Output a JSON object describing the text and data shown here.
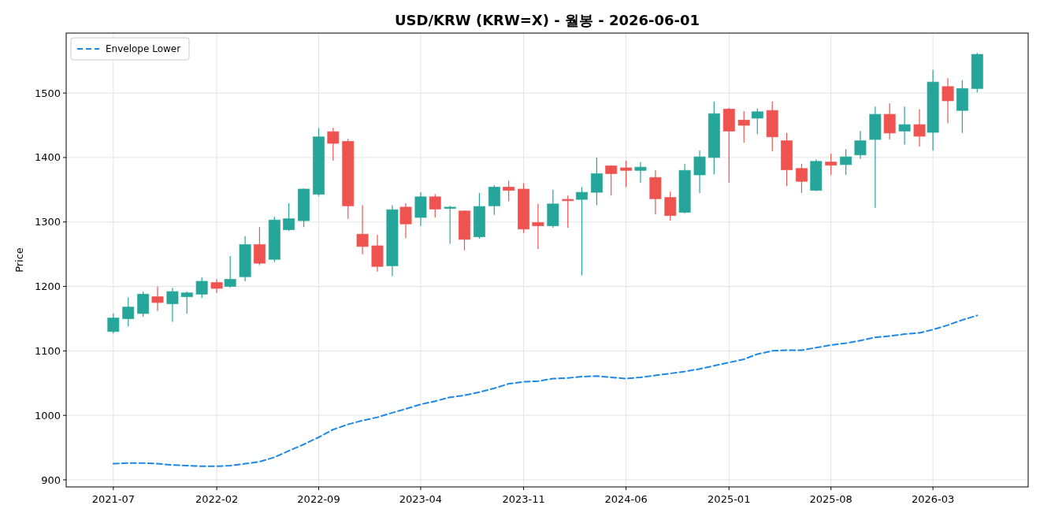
{
  "chart_data": {
    "type": "candlestick",
    "title": "USD/KRW (KRW=X) - 월봉 - 2026-06-01",
    "ylabel": "Price",
    "x": [
      "2021-07",
      "2021-08",
      "2021-09",
      "2021-10",
      "2021-11",
      "2021-12",
      "2022-01",
      "2022-02",
      "2022-03",
      "2022-04",
      "2022-05",
      "2022-06",
      "2022-07",
      "2022-08",
      "2022-09",
      "2022-10",
      "2022-11",
      "2022-12",
      "2023-01",
      "2023-02",
      "2023-03",
      "2023-04",
      "2023-05",
      "2023-06",
      "2023-07",
      "2023-08",
      "2023-09",
      "2023-10",
      "2023-11",
      "2023-12",
      "2024-01",
      "2024-02",
      "2024-03",
      "2024-04",
      "2024-05",
      "2024-06",
      "2024-07",
      "2024-08",
      "2024-09",
      "2024-10",
      "2024-11",
      "2024-12",
      "2025-01",
      "2025-02",
      "2025-03",
      "2025-04",
      "2025-05",
      "2025-06",
      "2025-07",
      "2025-08",
      "2025-09",
      "2025-10",
      "2025-11",
      "2025-12",
      "2026-01",
      "2026-02",
      "2026-03",
      "2026-04",
      "2026-05",
      "2026-06"
    ],
    "ohlc": [
      [
        1130,
        1158,
        1127,
        1151
      ],
      [
        1150,
        1183,
        1138,
        1168
      ],
      [
        1158,
        1192,
        1153,
        1188
      ],
      [
        1184,
        1200,
        1162,
        1175
      ],
      [
        1173,
        1198,
        1145,
        1192
      ],
      [
        1184,
        1192,
        1158,
        1190
      ],
      [
        1188,
        1214,
        1182,
        1208
      ],
      [
        1206,
        1211,
        1190,
        1197
      ],
      [
        1200,
        1247,
        1198,
        1211
      ],
      [
        1215,
        1278,
        1208,
        1265
      ],
      [
        1265,
        1292,
        1233,
        1236
      ],
      [
        1242,
        1308,
        1238,
        1303
      ],
      [
        1288,
        1329,
        1286,
        1305
      ],
      [
        1302,
        1352,
        1292,
        1351
      ],
      [
        1343,
        1446,
        1340,
        1432
      ],
      [
        1440,
        1446,
        1395,
        1422
      ],
      [
        1425,
        1429,
        1305,
        1325
      ],
      [
        1281,
        1326,
        1250,
        1262
      ],
      [
        1263,
        1280,
        1223,
        1231
      ],
      [
        1232,
        1326,
        1216,
        1319
      ],
      [
        1323,
        1329,
        1275,
        1297
      ],
      [
        1307,
        1346,
        1294,
        1339
      ],
      [
        1339,
        1343,
        1307,
        1320
      ],
      [
        1321,
        1325,
        1266,
        1323
      ],
      [
        1317,
        1318,
        1256,
        1273
      ],
      [
        1277,
        1345,
        1274,
        1324
      ],
      [
        1325,
        1357,
        1311,
        1354
      ],
      [
        1354,
        1364,
        1332,
        1349
      ],
      [
        1351,
        1360,
        1283,
        1289
      ],
      [
        1299,
        1328,
        1258,
        1294
      ],
      [
        1294,
        1350,
        1291,
        1328
      ],
      [
        1335,
        1341,
        1291,
        1333
      ],
      [
        1335,
        1354,
        1217,
        1346
      ],
      [
        1346,
        1400,
        1326,
        1375
      ],
      [
        1387,
        1388,
        1341,
        1375
      ],
      [
        1384,
        1395,
        1354,
        1380
      ],
      [
        1380,
        1393,
        1361,
        1385
      ],
      [
        1369,
        1380,
        1312,
        1336
      ],
      [
        1338,
        1347,
        1302,
        1310
      ],
      [
        1315,
        1390,
        1313,
        1380
      ],
      [
        1373,
        1411,
        1345,
        1401
      ],
      [
        1400,
        1487,
        1374,
        1468
      ],
      [
        1475,
        1477,
        1361,
        1441
      ],
      [
        1458,
        1472,
        1423,
        1450
      ],
      [
        1461,
        1476,
        1436,
        1471
      ],
      [
        1473,
        1487,
        1410,
        1432
      ],
      [
        1426,
        1438,
        1356,
        1381
      ],
      [
        1383,
        1390,
        1345,
        1363
      ],
      [
        1349,
        1397,
        1348,
        1394
      ],
      [
        1393,
        1406,
        1373,
        1388
      ],
      [
        1389,
        1413,
        1373,
        1401
      ],
      [
        1404,
        1441,
        1398,
        1426
      ],
      [
        1428,
        1479,
        1322,
        1467
      ],
      [
        1467,
        1484,
        1428,
        1438
      ],
      [
        1441,
        1479,
        1420,
        1451
      ],
      [
        1451,
        1475,
        1417,
        1433
      ],
      [
        1439,
        1536,
        1411,
        1517
      ],
      [
        1510,
        1523,
        1453,
        1488
      ],
      [
        1473,
        1520,
        1438,
        1507
      ],
      [
        1507,
        1562,
        1501,
        1560
      ]
    ],
    "colors": [
      "#26a69a",
      "#26a69a",
      "#26a69a",
      "#ef5350",
      "#26a69a",
      "#26a69a",
      "#26a69a",
      "#ef5350",
      "#26a69a",
      "#26a69a",
      "#ef5350",
      "#26a69a",
      "#26a69a",
      "#26a69a",
      "#26a69a",
      "#ef5350",
      "#ef5350",
      "#ef5350",
      "#ef5350",
      "#26a69a",
      "#ef5350",
      "#26a69a",
      "#ef5350",
      "#26a69a",
      "#ef5350",
      "#26a69a",
      "#26a69a",
      "#ef5350",
      "#ef5350",
      "#ef5350",
      "#26a69a",
      "#ef5350",
      "#26a69a",
      "#26a69a",
      "#ef5350",
      "#ef5350",
      "#26a69a",
      "#ef5350",
      "#ef5350",
      "#26a69a",
      "#26a69a",
      "#26a69a",
      "#ef5350",
      "#ef5350",
      "#26a69a",
      "#ef5350",
      "#ef5350",
      "#ef5350",
      "#26a69a",
      "#ef5350",
      "#26a69a",
      "#26a69a",
      "#26a69a",
      "#ef5350",
      "#26a69a",
      "#ef5350",
      "#26a69a",
      "#ef5350",
      "#26a69a",
      "#26a69a"
    ],
    "series": [
      {
        "type": "line",
        "name": "Envelope Lower",
        "color": "#1e88e5",
        "line_style": "dashed",
        "values": [
          925,
          926,
          926,
          925,
          923,
          922,
          921,
          921,
          922,
          925,
          928,
          935,
          945,
          955,
          966,
          978,
          986,
          992,
          997,
          1004,
          1010,
          1017,
          1022,
          1028,
          1031,
          1036,
          1042,
          1049,
          1052,
          1053,
          1057,
          1058,
          1060,
          1061,
          1059,
          1057,
          1059,
          1062,
          1065,
          1068,
          1072,
          1077,
          1082,
          1087,
          1095,
          1100,
          1101,
          1101,
          1105,
          1109,
          1112,
          1116,
          1121,
          1123,
          1126,
          1128,
          1133,
          1140,
          1148,
          1155
        ]
      }
    ],
    "xlim": [
      "2021-03-25",
      "2026-09-15"
    ],
    "ylim": [
      889,
      1593
    ],
    "xticks": [
      "2021-07",
      "2022-02",
      "2022-09",
      "2023-04",
      "2023-11",
      "2024-06",
      "2025-01",
      "2025-08",
      "2026-03"
    ],
    "yticks": [
      900,
      1000,
      1100,
      1200,
      1300,
      1400,
      1500
    ],
    "grid": true,
    "legend": "top left"
  }
}
